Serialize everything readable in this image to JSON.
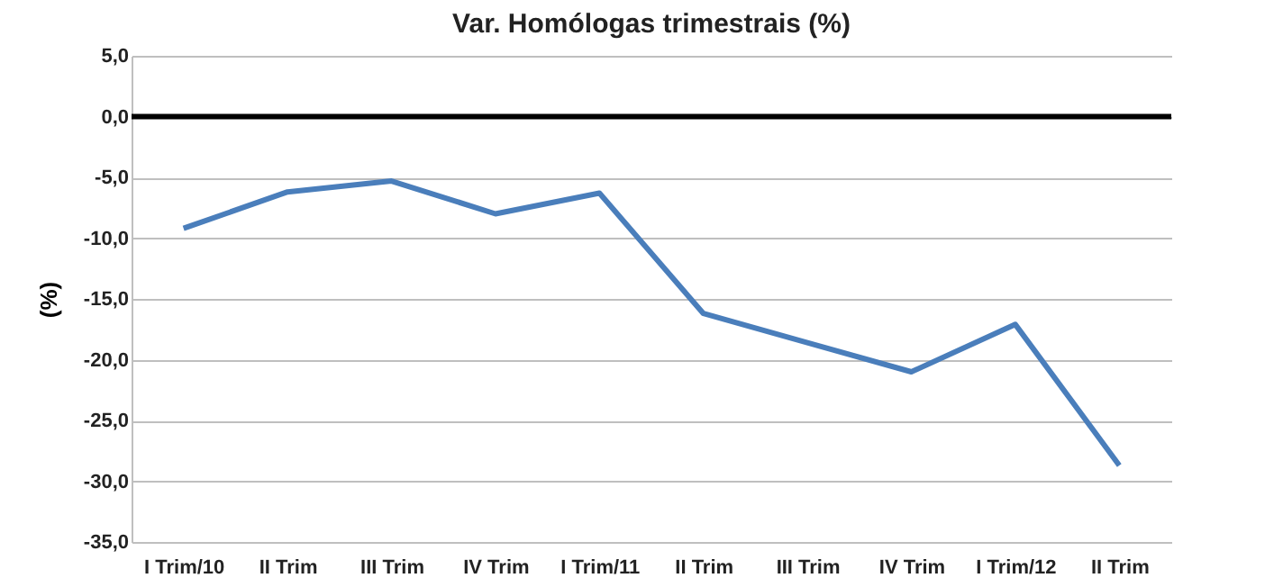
{
  "chart_data": {
    "type": "line",
    "title": "Var. Homólogas trimestrais (%)",
    "ylabel": "(%)",
    "categories": [
      "I Trim/10",
      "II Trim",
      "III Trim",
      "IV Trim",
      "I Trim/11",
      "II Trim",
      "III Trim",
      "IV Trim",
      "I Trim/12",
      "II Trim"
    ],
    "series": [
      {
        "color": "#4a7ebb",
        "values": [
          -9.2,
          -6.2,
          -5.3,
          -8.0,
          -6.3,
          -16.2,
          -18.6,
          -21.0,
          -17.1,
          -28.7
        ]
      }
    ],
    "ylim": [
      -35,
      5
    ],
    "yticks": [
      {
        "value": -35,
        "label": "-35,0"
      },
      {
        "value": -30,
        "label": "-30,0"
      },
      {
        "value": -25,
        "label": "-25,0"
      },
      {
        "value": -20,
        "label": "-20,0"
      },
      {
        "value": -15,
        "label": "-15,0"
      },
      {
        "value": -10,
        "label": "-10,0"
      },
      {
        "value": -5,
        "label": "-5,0"
      },
      {
        "value": 0,
        "label": "0,0"
      },
      {
        "value": 5,
        "label": "5,0"
      }
    ],
    "grid": "y",
    "marker": "none",
    "line_style": "solid",
    "ref_lines": [
      {
        "axis": "y",
        "value": 0,
        "color": "#000000"
      }
    ]
  }
}
